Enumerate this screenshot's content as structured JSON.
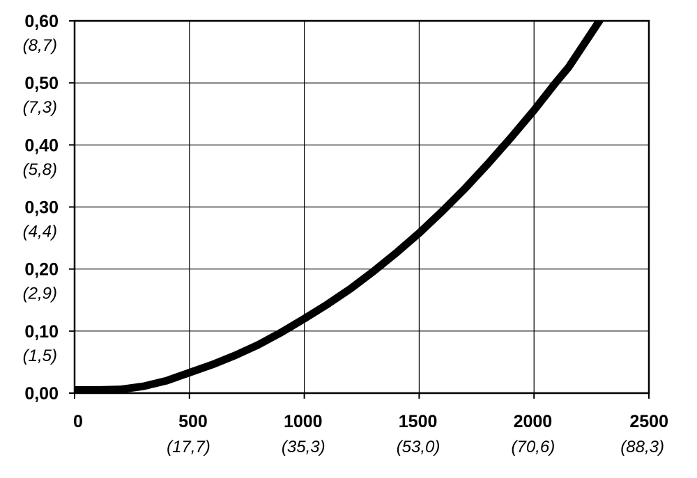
{
  "chart_data": {
    "type": "line",
    "title": "",
    "xlabel": "",
    "ylabel": "",
    "xlim": [
      0,
      2500
    ],
    "ylim": [
      0,
      0.6
    ],
    "grid": true,
    "legend": "none",
    "line_color": "#000000",
    "x_ticks": [
      {
        "value": 0,
        "label": "0",
        "sublabel": ""
      },
      {
        "value": 500,
        "label": "500",
        "sublabel": "(17,7)"
      },
      {
        "value": 1000,
        "label": "1000",
        "sublabel": "(35,3)"
      },
      {
        "value": 1500,
        "label": "1500",
        "sublabel": "(53,0)"
      },
      {
        "value": 2000,
        "label": "2000",
        "sublabel": "(70,6)"
      },
      {
        "value": 2500,
        "label": "2500",
        "sublabel": "(88,3)"
      }
    ],
    "y_ticks": [
      {
        "value": 0.0,
        "label": "0,00",
        "sublabel": ""
      },
      {
        "value": 0.1,
        "label": "0,10",
        "sublabel": "(1,5)"
      },
      {
        "value": 0.2,
        "label": "0,20",
        "sublabel": "(2,9)"
      },
      {
        "value": 0.3,
        "label": "0,30",
        "sublabel": "(4,4)"
      },
      {
        "value": 0.4,
        "label": "0,40",
        "sublabel": "(5,8)"
      },
      {
        "value": 0.5,
        "label": "0,50",
        "sublabel": "(7,3)"
      },
      {
        "value": 0.6,
        "label": "0,60",
        "sublabel": "(8,7)"
      }
    ],
    "series": [
      {
        "name": "",
        "x": [
          0,
          100,
          200,
          300,
          400,
          500,
          600,
          700,
          800,
          900,
          1000,
          1100,
          1200,
          1300,
          1400,
          1500,
          1600,
          1700,
          1800,
          1900,
          2000,
          2100,
          2150
        ],
        "y": [
          0.005,
          0.005,
          0.006,
          0.011,
          0.02,
          0.033,
          0.046,
          0.061,
          0.078,
          0.098,
          0.12,
          0.143,
          0.168,
          0.196,
          0.226,
          0.258,
          0.293,
          0.33,
          0.37,
          0.412,
          0.456,
          0.503,
          0.525
        ]
      }
    ]
  }
}
